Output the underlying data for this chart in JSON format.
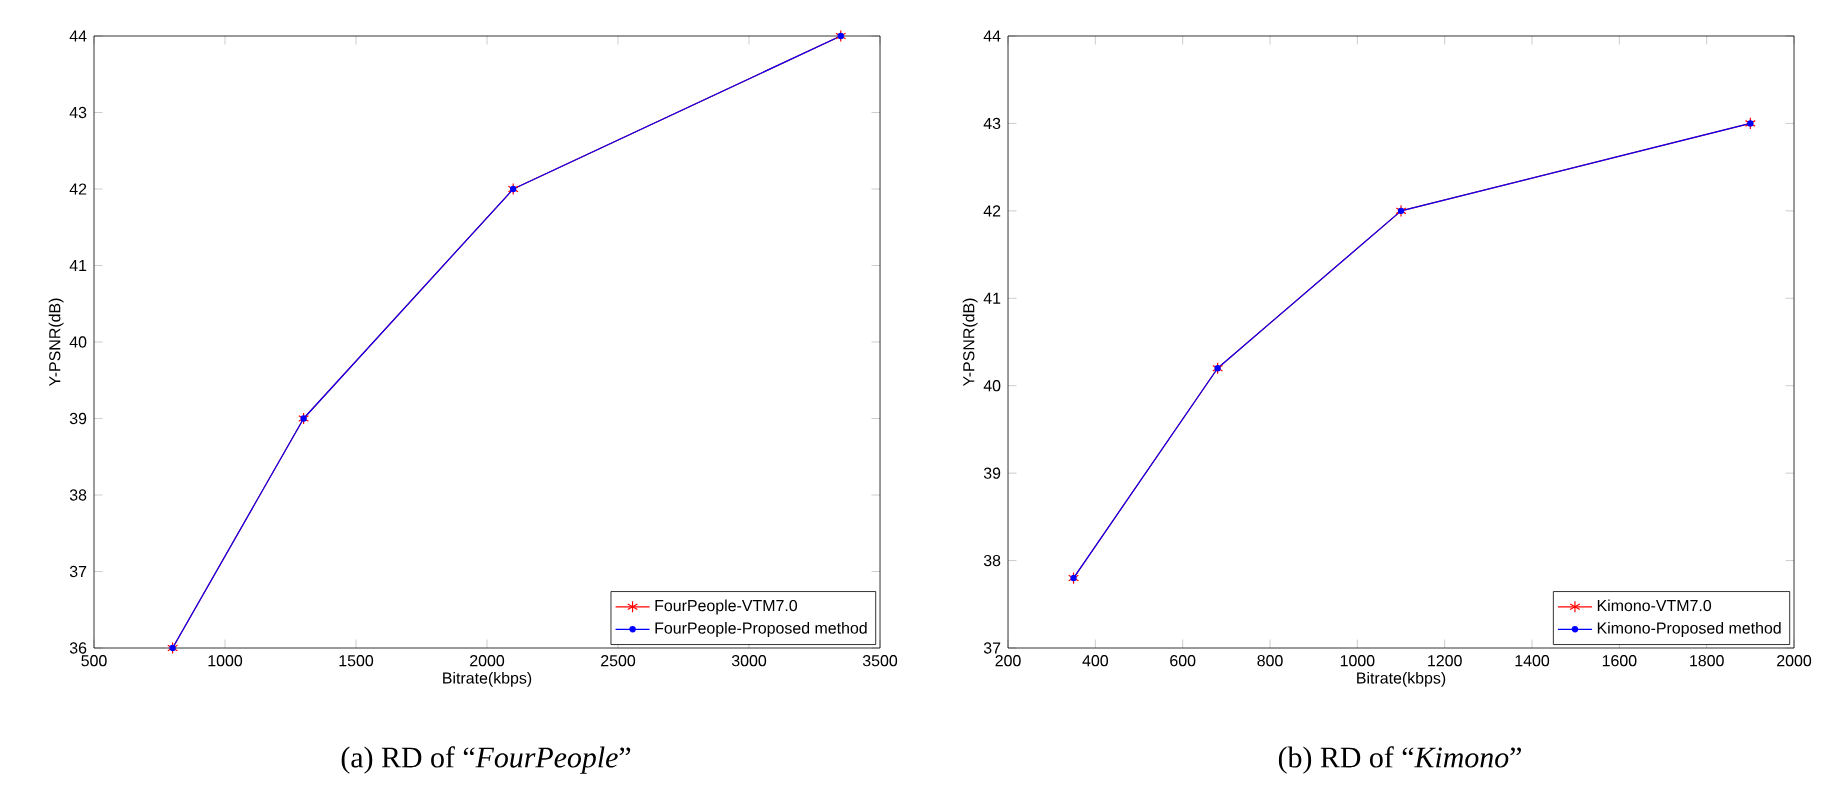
{
  "chart_data": [
    {
      "type": "line",
      "xlabel": "Bitrate(kbps)",
      "ylabel": "Y-PSNR(dB)",
      "x": [
        800,
        1300,
        2100,
        3350
      ],
      "series": [
        {
          "name": "FourPeople-VTM7.0",
          "color": "#ff0000",
          "marker": "cross",
          "values": [
            36,
            39,
            42,
            44
          ]
        },
        {
          "name": "FourPeople-Proposed method",
          "color": "#0000ff",
          "marker": "circle",
          "values": [
            36,
            39,
            42,
            44
          ]
        }
      ],
      "xlim": [
        500,
        3500
      ],
      "xticks": [
        500,
        1000,
        1500,
        2000,
        2500,
        3000,
        3500
      ],
      "ylim": [
        36,
        44
      ],
      "yticks": [
        36,
        37,
        38,
        39,
        40,
        41,
        42,
        43,
        44
      ],
      "legend": "bottom right",
      "line_style": "solid",
      "annotations": [
        "(a)  RD of “*FourPeople*”"
      ]
    },
    {
      "type": "line",
      "xlabel": "Bitrate(kbps)",
      "ylabel": "Y-PSNR(dB)",
      "x": [
        350,
        680,
        1100,
        1900
      ],
      "series": [
        {
          "name": "Kimono-VTM7.0",
          "color": "#ff0000",
          "marker": "cross",
          "values": [
            37.8,
            40.2,
            42,
            43
          ]
        },
        {
          "name": "Kimono-Proposed method",
          "color": "#0000ff",
          "marker": "circle",
          "values": [
            37.8,
            40.2,
            42,
            43
          ]
        }
      ],
      "xlim": [
        200,
        2000
      ],
      "xticks": [
        200,
        400,
        600,
        800,
        1000,
        1200,
        1400,
        1600,
        1800,
        2000
      ],
      "ylim": [
        37,
        44
      ],
      "yticks": [
        37,
        38,
        39,
        40,
        41,
        42,
        43,
        44
      ],
      "legend": "bottom right",
      "line_style": "solid",
      "annotations": [
        "(b)  RD of “*Kimono*”"
      ]
    }
  ]
}
